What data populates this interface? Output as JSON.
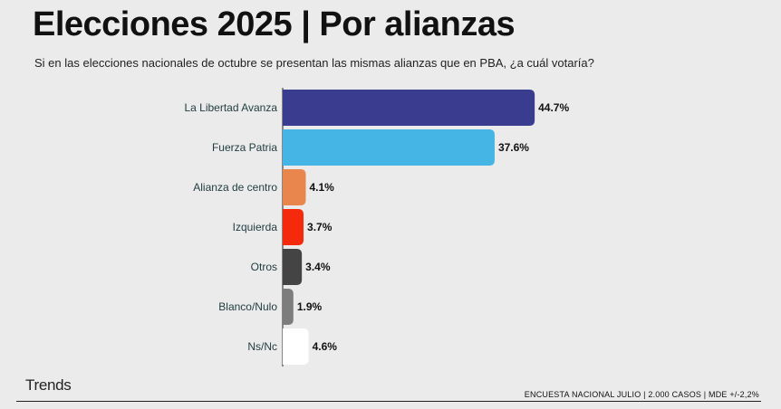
{
  "title": "Elecciones 2025 | Por alianzas",
  "subtitle": "Si en las elecciones nacionales de octubre se presentan las mismas alianzas que en PBA, ¿a cuál votaría?",
  "brand": "Trends",
  "footnote": "ENCUESTA NACIONAL JULIO | 2.000 CASOS | MDE +/-2,2%",
  "chart_data": {
    "type": "bar",
    "orientation": "horizontal",
    "categories": [
      "La Libertad Avanza",
      "Fuerza Patria",
      "Alianza de centro",
      "Izquierda",
      "Otros",
      "Blanco/Nulo",
      "Ns/Nc"
    ],
    "values": [
      44.7,
      37.6,
      4.1,
      3.7,
      3.4,
      1.9,
      4.6
    ],
    "value_labels": [
      "44.7%",
      "37.6%",
      "4.1%",
      "3.7%",
      "3.4%",
      "1.9%",
      "4.6%"
    ],
    "colors": [
      "#3a3d8f",
      "#45b5e6",
      "#e8864e",
      "#f52a0c",
      "#444444",
      "#7d7d7d",
      "#ffffff"
    ],
    "xlim": [
      0,
      45
    ],
    "grid": false,
    "legend": "none",
    "title": "",
    "xlabel": "",
    "ylabel": ""
  }
}
